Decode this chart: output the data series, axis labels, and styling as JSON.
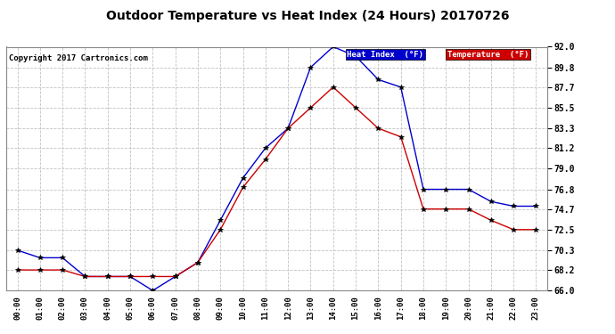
{
  "title": "Outdoor Temperature vs Heat Index (24 Hours) 20170726",
  "copyright": "Copyright 2017 Cartronics.com",
  "background_color": "#ffffff",
  "plot_bg_color": "#ffffff",
  "grid_color": "#bbbbbb",
  "x_labels": [
    "00:00",
    "01:00",
    "02:00",
    "03:00",
    "04:00",
    "05:00",
    "06:00",
    "07:00",
    "08:00",
    "09:00",
    "10:00",
    "11:00",
    "12:00",
    "13:00",
    "14:00",
    "15:00",
    "16:00",
    "17:00",
    "18:00",
    "19:00",
    "20:00",
    "21:00",
    "22:00",
    "23:00"
  ],
  "heat_index": [
    70.3,
    69.5,
    69.5,
    67.5,
    67.5,
    67.5,
    66.0,
    67.5,
    69.0,
    73.5,
    78.0,
    81.2,
    83.3,
    89.8,
    92.0,
    91.0,
    88.5,
    87.7,
    76.8,
    76.8,
    76.8,
    75.5,
    75.0,
    75.0
  ],
  "temperature": [
    68.2,
    68.2,
    68.2,
    67.5,
    67.5,
    67.5,
    67.5,
    67.5,
    69.0,
    72.5,
    77.0,
    80.0,
    83.3,
    85.5,
    87.7,
    85.5,
    83.3,
    82.4,
    74.7,
    74.7,
    74.7,
    73.5,
    72.5,
    72.5
  ],
  "ylim": [
    66.0,
    92.0
  ],
  "yticks": [
    66.0,
    68.2,
    70.3,
    72.5,
    74.7,
    76.8,
    79.0,
    81.2,
    83.3,
    85.5,
    87.7,
    89.8,
    92.0
  ],
  "heat_index_color": "#0000cc",
  "temperature_color": "#cc0000",
  "marker_color": "#000000",
  "legend_hi_bg": "#0000cc",
  "legend_temp_bg": "#cc0000",
  "legend_hi_label": "Heat Index  (°F)",
  "legend_temp_label": "Temperature  (°F)"
}
